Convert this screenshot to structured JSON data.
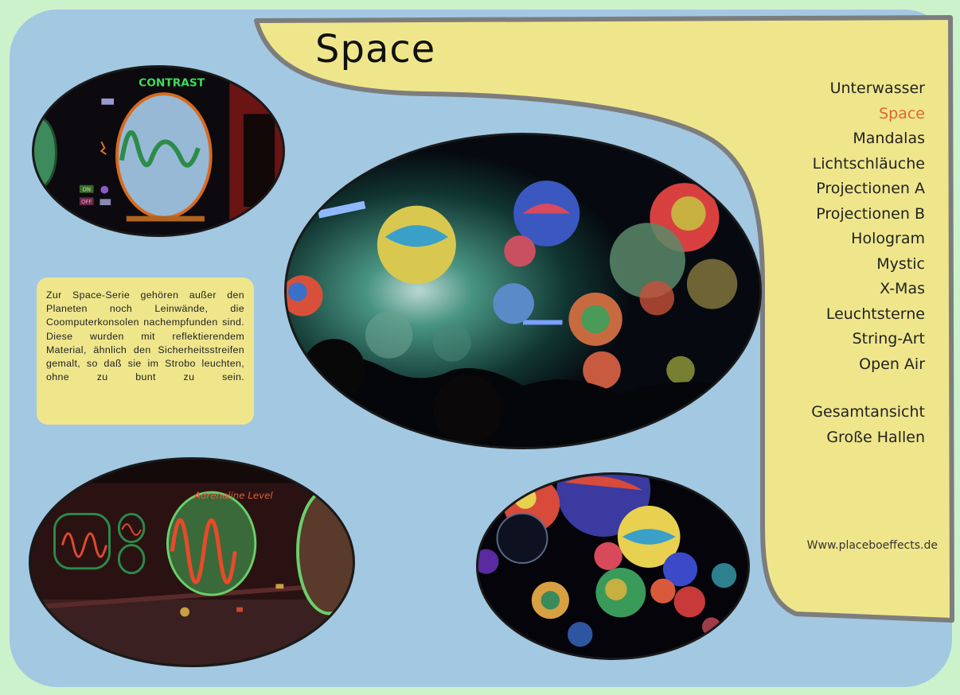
{
  "page": {
    "title": "Space",
    "website": "Www.placeboeffects.de"
  },
  "colors": {
    "outer_background": "#ccf2cc",
    "panel": "#a3c8e2",
    "banner": "#efe68c",
    "banner_border": "#808080",
    "active_nav": "#e0682c",
    "text": "#222222"
  },
  "nav": {
    "items": [
      {
        "label": "Unterwasser",
        "active": false
      },
      {
        "label": "Space",
        "active": true
      },
      {
        "label": "Mandalas",
        "active": false
      },
      {
        "label": "Lichtschläuche",
        "active": false
      },
      {
        "label": "Projectionen A",
        "active": false
      },
      {
        "label": "Projectionen B",
        "active": false
      },
      {
        "label": "Hologram",
        "active": false
      },
      {
        "label": "Mystic",
        "active": false
      },
      {
        "label": "X-Mas",
        "active": false
      },
      {
        "label": "Leuchtsterne",
        "active": false
      },
      {
        "label": "String-Art",
        "active": false
      },
      {
        "label": "Open Air",
        "active": false
      }
    ],
    "secondary": [
      {
        "label": "Gesamtansicht"
      },
      {
        "label": "Große Hallen"
      }
    ]
  },
  "description": {
    "text": "Zur Space-Serie gehören außer den Planeten noch Leinwände, die Coomputerkonsolen nachempfunden sind. Diese wurden mit reflektierendem Material, ähnlich den Sicherheitsstreifen gemalt, so daß sie im Strobo leuchten, ohne zu bunt zu sein."
  },
  "photos": {
    "contrast": {
      "sign_text": "CONTRAST",
      "button_on": "ON",
      "button_off": "OFF"
    },
    "adrenaline": {
      "sign_text": "Adrenaline Level"
    },
    "hall": {},
    "planets": {}
  }
}
